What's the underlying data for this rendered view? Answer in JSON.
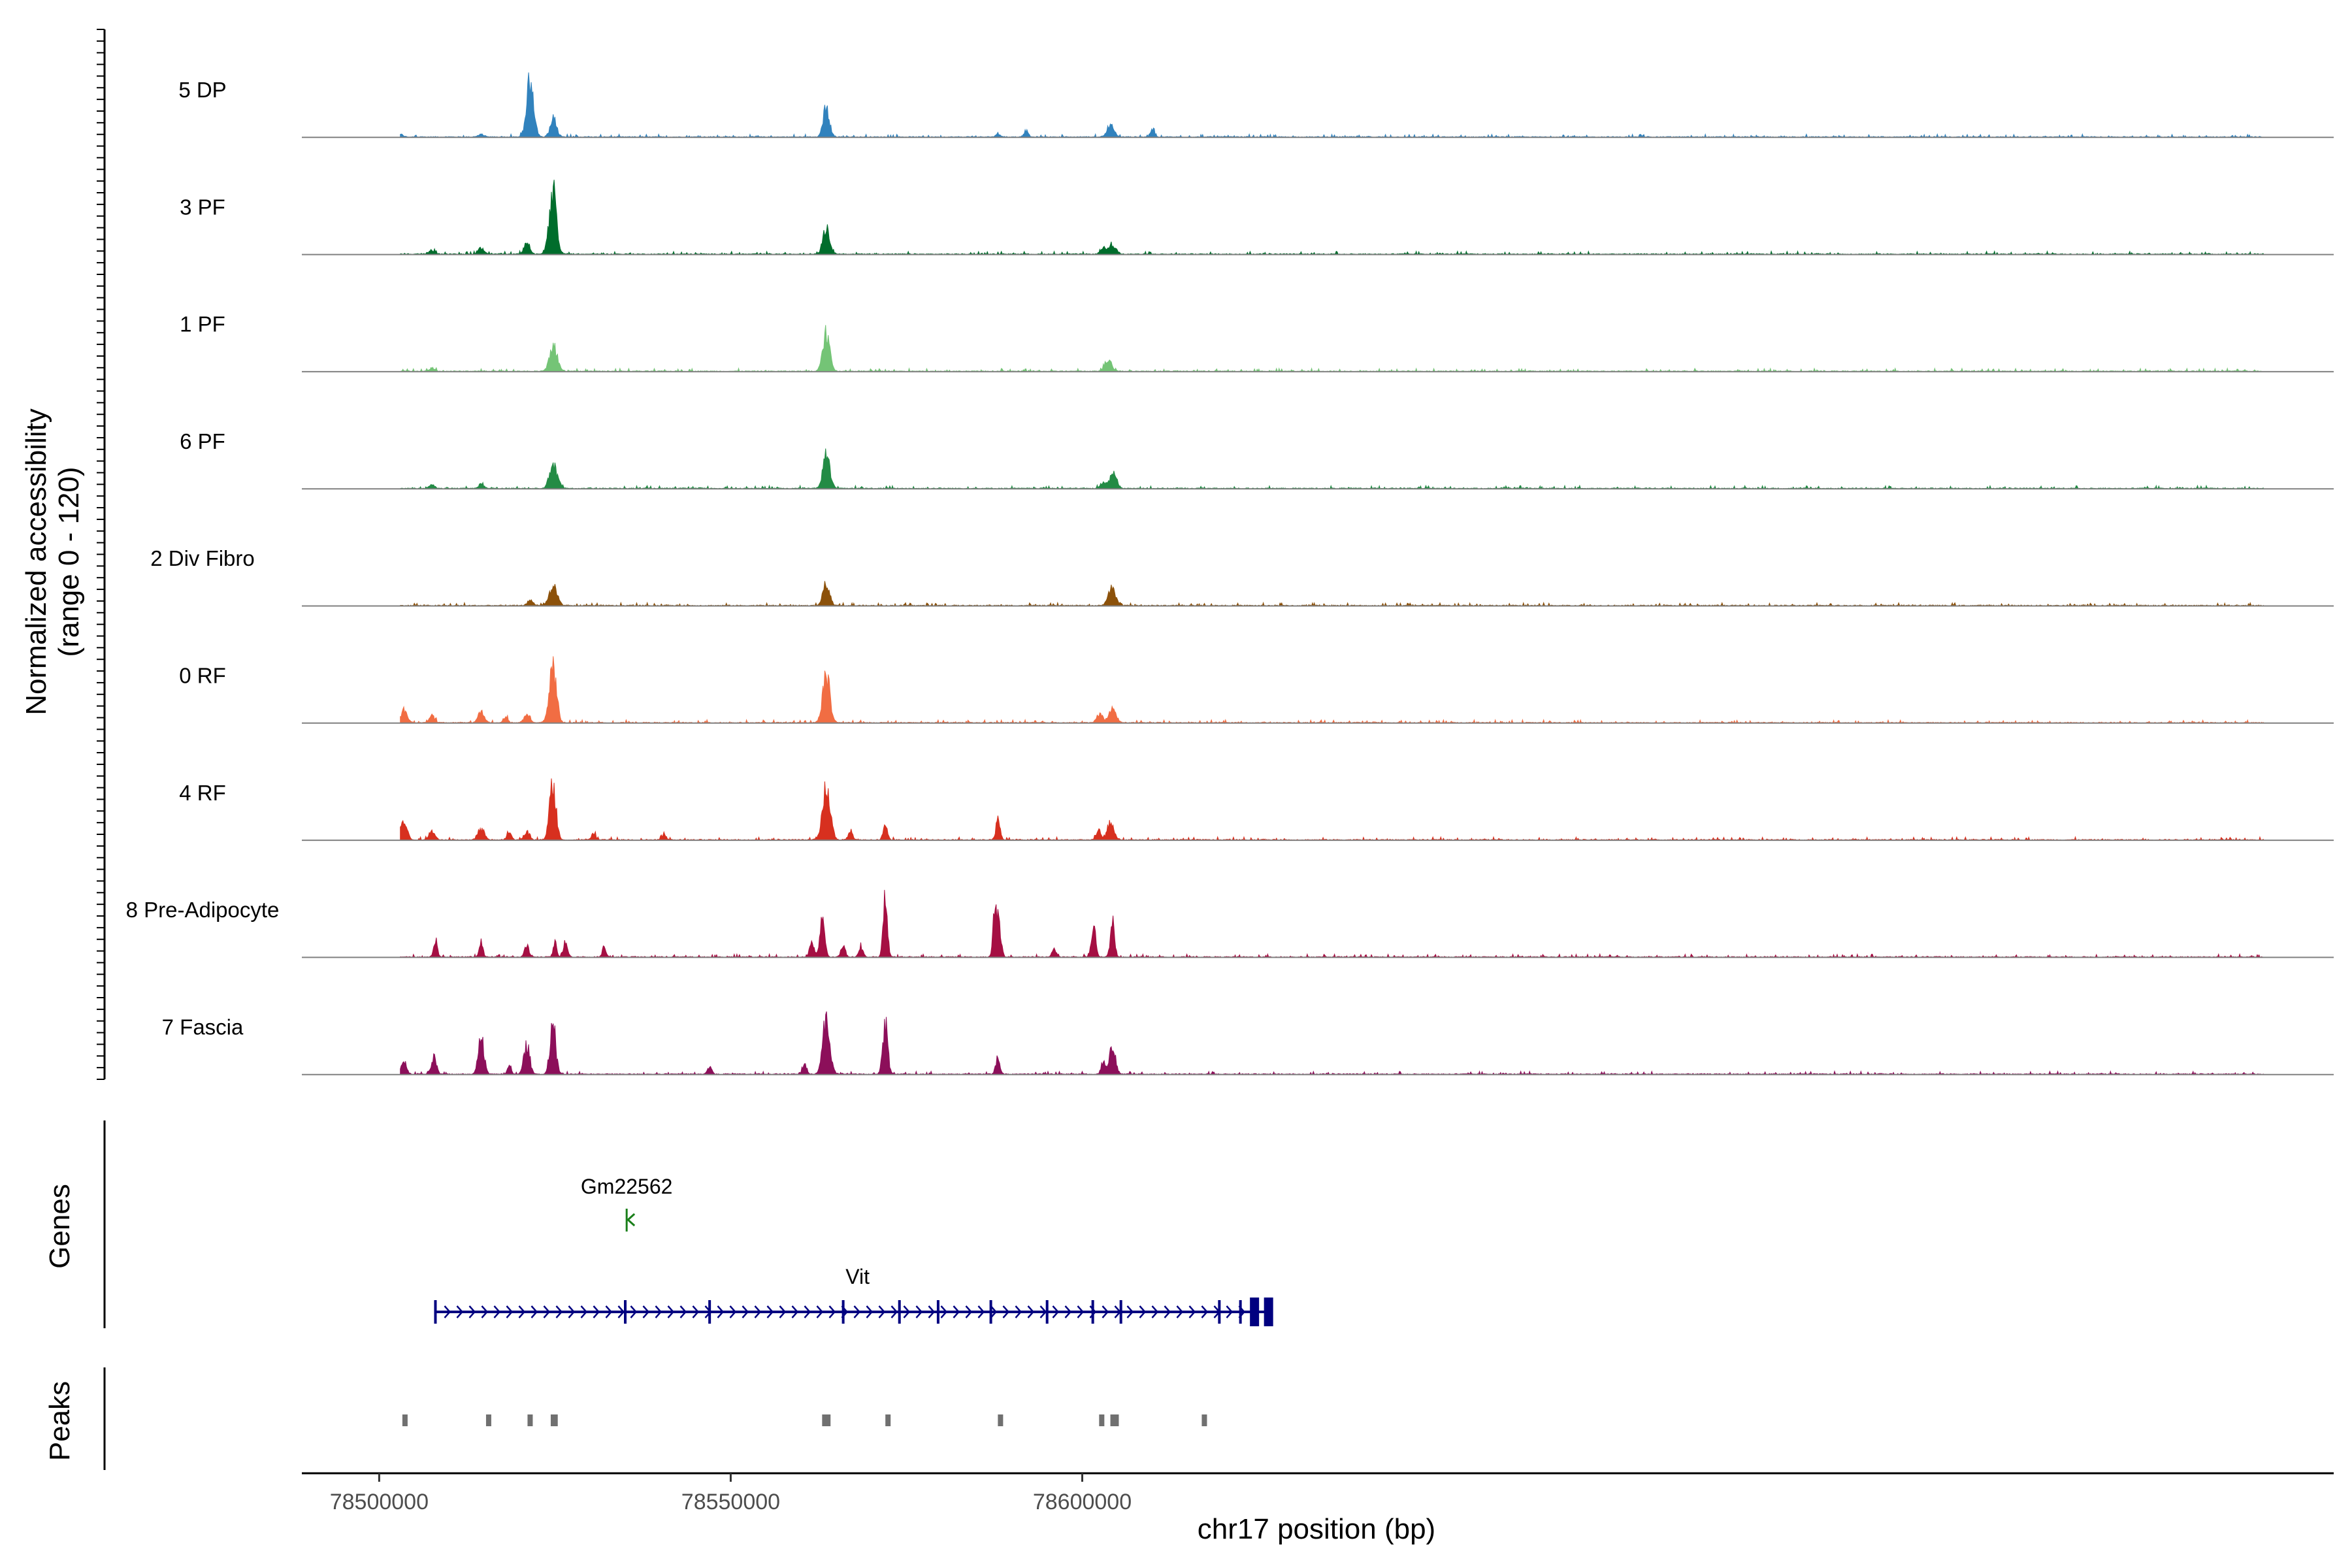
{
  "chart_data": {
    "type": "coverage-tracks",
    "title": "",
    "ylabel_line1": "Normalized accessibility",
    "ylabel_line2": "(range 0 - 120)",
    "yrange": [
      0,
      120
    ],
    "genes_label": "Genes",
    "peaks_label": "Peaks",
    "xlabel": "chr17 position (bp)",
    "xlim": [
      78489000,
      78778000
    ],
    "xticks": [
      78500000,
      78550000,
      78600000
    ],
    "xtick_labels": [
      "78500000",
      "78550000",
      "78600000"
    ],
    "tracks": [
      {
        "name": "5 DP",
        "color": "#3182bd",
        "peaks": [
          [
            78521500,
            90,
            500
          ],
          [
            78524800,
            28,
            450
          ],
          [
            78563600,
            45,
            450
          ],
          [
            78592000,
            10,
            300
          ],
          [
            78604000,
            18,
            500
          ],
          [
            78610000,
            12,
            300
          ],
          [
            78588000,
            5,
            300
          ],
          [
            78503000,
            4,
            400
          ],
          [
            78514500,
            4,
            400
          ]
        ]
      },
      {
        "name": "3 PF",
        "color": "#006d2c",
        "peaks": [
          [
            78524700,
            100,
            500
          ],
          [
            78563600,
            45,
            450
          ],
          [
            78521000,
            18,
            400
          ],
          [
            78514500,
            10,
            400
          ],
          [
            78507500,
            6,
            400
          ],
          [
            78604300,
            14,
            500
          ],
          [
            78603000,
            10,
            400
          ]
        ]
      },
      {
        "name": "1 PF",
        "color": "#74c476",
        "peaks": [
          [
            78524800,
            38,
            550
          ],
          [
            78563600,
            60,
            500
          ],
          [
            78603700,
            18,
            500
          ],
          [
            78507500,
            5,
            400
          ]
        ]
      },
      {
        "name": "6 PF",
        "color": "#238b45",
        "peaks": [
          [
            78524800,
            35,
            550
          ],
          [
            78563600,
            50,
            500
          ],
          [
            78604400,
            22,
            500
          ],
          [
            78603000,
            10,
            400
          ],
          [
            78514500,
            6,
            400
          ],
          [
            78507500,
            5,
            400
          ]
        ]
      },
      {
        "name": "2 Div Fibro",
        "color": "#8c510a",
        "peaks": [
          [
            78524800,
            30,
            550
          ],
          [
            78563600,
            35,
            450
          ],
          [
            78604200,
            28,
            500
          ],
          [
            78521500,
            8,
            400
          ]
        ]
      },
      {
        "name": "0 RF",
        "color": "#f16d43",
        "peaks": [
          [
            78524700,
            90,
            500
          ],
          [
            78563600,
            75,
            500
          ],
          [
            78503500,
            20,
            450
          ],
          [
            78507500,
            10,
            400
          ],
          [
            78514500,
            16,
            450
          ],
          [
            78521000,
            14,
            400
          ],
          [
            78518000,
            10,
            300
          ],
          [
            78604300,
            20,
            500
          ],
          [
            78602500,
            15,
            400
          ]
        ]
      },
      {
        "name": "4 RF",
        "color": "#d7301f",
        "peaks": [
          [
            78524700,
            92,
            450
          ],
          [
            78563600,
            82,
            550
          ],
          [
            78503500,
            30,
            450
          ],
          [
            78507500,
            14,
            400
          ],
          [
            78514500,
            18,
            450
          ],
          [
            78518500,
            14,
            300
          ],
          [
            78521000,
            12,
            400
          ],
          [
            78572000,
            22,
            300
          ],
          [
            78588000,
            30,
            300
          ],
          [
            78604000,
            25,
            500
          ],
          [
            78602300,
            15,
            300
          ],
          [
            78530500,
            10,
            300
          ],
          [
            78540500,
            8,
            300
          ],
          [
            78567000,
            14,
            300
          ]
        ]
      },
      {
        "name": "8 Pre-Adipocyte",
        "color": "#a50f43",
        "peaks": [
          [
            78572000,
            95,
            300
          ],
          [
            78563000,
            55,
            350
          ],
          [
            78588000,
            65,
            350
          ],
          [
            78587500,
            50,
            250
          ],
          [
            78601600,
            48,
            300
          ],
          [
            78604300,
            52,
            300
          ],
          [
            78526500,
            25,
            300
          ],
          [
            78532000,
            16,
            250
          ],
          [
            78514500,
            24,
            250
          ],
          [
            78508000,
            28,
            250
          ],
          [
            78521000,
            18,
            300
          ],
          [
            78566000,
            18,
            300
          ],
          [
            78568500,
            15,
            300
          ],
          [
            78561500,
            25,
            300
          ],
          [
            78596000,
            14,
            300
          ],
          [
            78525000,
            22,
            250
          ]
        ]
      },
      {
        "name": "7 Fascia",
        "color": "#8c0f5a",
        "peaks": [
          [
            78563600,
            90,
            500
          ],
          [
            78572000,
            75,
            350
          ],
          [
            78524700,
            80,
            400
          ],
          [
            78514500,
            58,
            400
          ],
          [
            78521000,
            48,
            400
          ],
          [
            78507800,
            25,
            350
          ],
          [
            78503500,
            20,
            350
          ],
          [
            78588000,
            25,
            300
          ],
          [
            78604300,
            45,
            400
          ],
          [
            78603000,
            20,
            300
          ],
          [
            78560500,
            14,
            300
          ],
          [
            78547000,
            12,
            300
          ],
          [
            78518500,
            16,
            250
          ]
        ]
      }
    ],
    "genes": [
      {
        "name": "Gm22562",
        "start": 78535200,
        "end": 78535400,
        "strand": "-",
        "color": "#1a7f1a"
      },
      {
        "name": "Vit",
        "start": 78508000,
        "end": 78627000,
        "strand": "+",
        "color": "#000080",
        "exons": [
          78508000,
          78535000,
          78547000,
          78566000,
          78574000,
          78579500,
          78587000,
          78595000,
          78601500,
          78605500,
          78619500,
          78622500,
          78624500,
          78626500
        ]
      }
    ],
    "peaks": [
      [
        78503300,
        78503700
      ],
      [
        78515200,
        78515600
      ],
      [
        78521100,
        78521700
      ],
      [
        78524400,
        78525400
      ],
      [
        78563000,
        78564200
      ],
      [
        78572000,
        78572400
      ],
      [
        78588000,
        78588400
      ],
      [
        78602400,
        78602800
      ],
      [
        78604000,
        78605200
      ],
      [
        78617000,
        78617600
      ]
    ]
  }
}
